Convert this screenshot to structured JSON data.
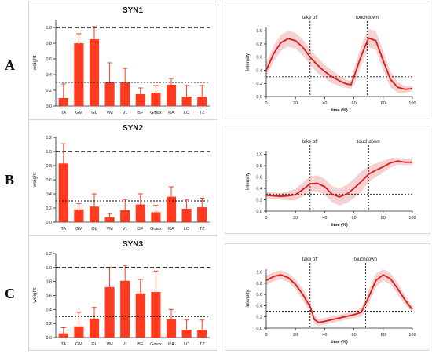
{
  "row_labels": [
    "A",
    "B",
    "C"
  ],
  "colors": {
    "bar": "#ff3a1f",
    "line": "#d81b1b",
    "band": "#f2c2c2",
    "ref": "#111111"
  },
  "chart_data": [
    {
      "type": "bar",
      "title": "SYN1",
      "xlabel": "",
      "ylabel": "weight",
      "ylim": [
        0,
        1.1
      ],
      "yticks": [
        "0.0",
        "0.2",
        "0.4",
        "0.6",
        "0.8",
        "1.0"
      ],
      "categories": [
        "TA",
        "GM",
        "GL",
        "VM",
        "VL",
        "BF",
        "Gmax",
        "RA",
        "LO",
        "TZ"
      ],
      "values": [
        0.1,
        0.8,
        0.85,
        0.3,
        0.3,
        0.15,
        0.17,
        0.27,
        0.12,
        0.12
      ],
      "errors": [
        0.18,
        0.12,
        0.16,
        0.25,
        0.18,
        0.08,
        0.09,
        0.08,
        0.14,
        0.14
      ],
      "ref_lines": [
        1.0,
        0.3
      ]
    },
    {
      "type": "line",
      "title": "",
      "xlabel": "time (%)",
      "ylabel": "intensity",
      "xlim": [
        0,
        100
      ],
      "ylim": [
        0,
        1.05
      ],
      "xticks": [
        "0",
        "20",
        "40",
        "60",
        "80",
        "100"
      ],
      "yticks": [
        "0.0",
        "0.2",
        "0.4",
        "0.6",
        "0.8",
        "1.0"
      ],
      "markers": [
        {
          "label": "take off",
          "x": 30
        },
        {
          "label": "touchdown",
          "x": 69
        }
      ],
      "ref_y": 0.3,
      "x": [
        0,
        5,
        10,
        15,
        20,
        25,
        30,
        35,
        40,
        45,
        50,
        55,
        58,
        60,
        65,
        70,
        75,
        80,
        85,
        90,
        95,
        100
      ],
      "y": [
        0.4,
        0.65,
        0.82,
        0.88,
        0.85,
        0.75,
        0.6,
        0.48,
        0.38,
        0.3,
        0.24,
        0.19,
        0.18,
        0.3,
        0.62,
        0.89,
        0.85,
        0.55,
        0.26,
        0.14,
        0.11,
        0.12
      ],
      "band": [
        0.1,
        0.12,
        0.12,
        0.12,
        0.12,
        0.12,
        0.12,
        0.12,
        0.1,
        0.1,
        0.08,
        0.06,
        0.06,
        0.12,
        0.15,
        0.14,
        0.14,
        0.15,
        0.12,
        0.08,
        0.05,
        0.04
      ]
    },
    {
      "type": "bar",
      "title": "SYN2",
      "xlabel": "",
      "ylabel": "weight",
      "ylim": [
        0,
        1.2
      ],
      "yticks": [
        "0.0",
        "0.2",
        "0.4",
        "0.6",
        "0.8",
        "1.0",
        "1.2"
      ],
      "categories": [
        "TA",
        "GM",
        "OL",
        "VM",
        "VL",
        "BF",
        "Gmax",
        "RA",
        "LO",
        "TZ"
      ],
      "values": [
        0.83,
        0.18,
        0.22,
        0.07,
        0.17,
        0.25,
        0.14,
        0.36,
        0.19,
        0.21
      ],
      "errors": [
        0.28,
        0.08,
        0.18,
        0.05,
        0.15,
        0.15,
        0.1,
        0.14,
        0.13,
        0.13
      ],
      "ref_lines": [
        1.0,
        0.3
      ]
    },
    {
      "type": "line",
      "title": "",
      "xlabel": "time (%)",
      "ylabel": "intensity",
      "xlim": [
        0,
        100
      ],
      "ylim": [
        0,
        1.05
      ],
      "xticks": [
        "0",
        "20",
        "40",
        "60",
        "80",
        "100"
      ],
      "yticks": [
        "0.0",
        "0.2",
        "0.4",
        "0.6",
        "0.8",
        "1.0"
      ],
      "markers": [
        {
          "label": "take off",
          "x": 30
        },
        {
          "label": "touchdown",
          "x": 70
        }
      ],
      "ref_y": 0.3,
      "x": [
        0,
        5,
        10,
        15,
        20,
        25,
        30,
        35,
        40,
        45,
        50,
        55,
        60,
        65,
        70,
        75,
        80,
        85,
        90,
        95,
        100
      ],
      "y": [
        0.28,
        0.27,
        0.26,
        0.27,
        0.29,
        0.38,
        0.48,
        0.49,
        0.43,
        0.3,
        0.25,
        0.3,
        0.4,
        0.52,
        0.65,
        0.72,
        0.78,
        0.85,
        0.88,
        0.86,
        0.86
      ],
      "band": [
        0.06,
        0.06,
        0.06,
        0.08,
        0.1,
        0.12,
        0.14,
        0.14,
        0.14,
        0.14,
        0.15,
        0.16,
        0.17,
        0.18,
        0.14,
        0.12,
        0.1,
        0.08,
        0.06,
        0.05,
        0.05
      ]
    },
    {
      "type": "bar",
      "title": "SYN3",
      "xlabel": "",
      "ylabel": "weight",
      "ylim": [
        0,
        1.2
      ],
      "yticks": [
        "0.0",
        "0.2",
        "0.4",
        "0.6",
        "0.8",
        "1.0",
        "1.2"
      ],
      "categories": [
        "TA",
        "GM",
        "GL",
        "VM",
        "VL",
        "BF",
        "Gmax",
        "RA",
        "LO",
        "TZ"
      ],
      "values": [
        0.06,
        0.16,
        0.27,
        0.72,
        0.81,
        0.63,
        0.65,
        0.26,
        0.11,
        0.11
      ],
      "errors": [
        0.08,
        0.2,
        0.16,
        0.28,
        0.22,
        0.2,
        0.3,
        0.14,
        0.14,
        0.14
      ],
      "ref_lines": [
        1.0,
        0.3
      ]
    },
    {
      "type": "line",
      "title": "",
      "xlabel": "time (%)",
      "ylabel": "intensity",
      "xlim": [
        0,
        100
      ],
      "ylim": [
        0,
        1.05
      ],
      "xticks": [
        "0",
        "20",
        "40",
        "60",
        "80",
        "100"
      ],
      "yticks": [
        "0.0",
        "0.2",
        "0.4",
        "0.6",
        "0.8",
        "1.0"
      ],
      "markers": [
        {
          "label": "take off",
          "x": 30
        },
        {
          "label": "touchdown",
          "x": 68
        }
      ],
      "ref_y": 0.3,
      "x": [
        0,
        5,
        10,
        15,
        20,
        25,
        30,
        33,
        36,
        40,
        45,
        50,
        55,
        60,
        65,
        70,
        75,
        80,
        85,
        90,
        95,
        100
      ],
      "y": [
        0.85,
        0.92,
        0.95,
        0.9,
        0.78,
        0.6,
        0.38,
        0.15,
        0.1,
        0.12,
        0.15,
        0.18,
        0.21,
        0.24,
        0.28,
        0.55,
        0.85,
        0.95,
        0.88,
        0.7,
        0.5,
        0.33
      ],
      "band": [
        0.08,
        0.08,
        0.08,
        0.08,
        0.09,
        0.1,
        0.1,
        0.08,
        0.06,
        0.06,
        0.06,
        0.06,
        0.06,
        0.06,
        0.08,
        0.12,
        0.12,
        0.1,
        0.1,
        0.1,
        0.08,
        0.06
      ]
    }
  ]
}
